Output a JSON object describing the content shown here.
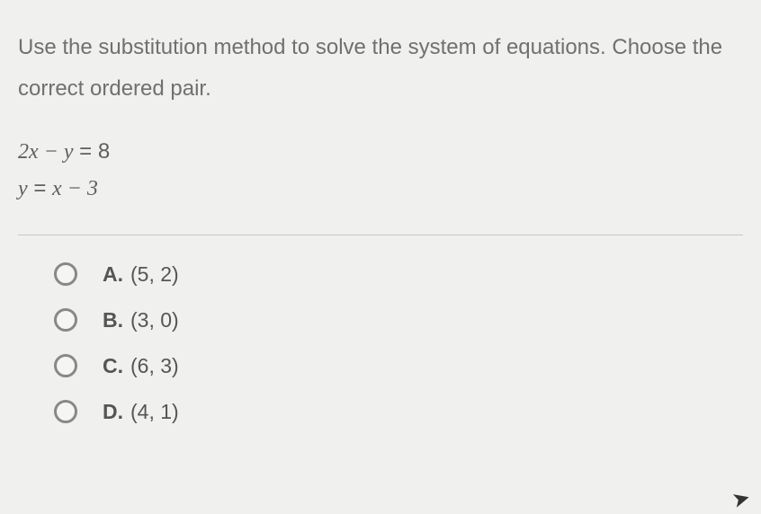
{
  "question": {
    "line1": "Use the substitution method to solve the system of equations. Choose the",
    "line2": "correct ordered pair."
  },
  "equations": {
    "eq1_lhs": "2x − y",
    "eq1_rhs": "8",
    "eq2_lhs": "y",
    "eq2_rhs": "x − 3"
  },
  "choices": [
    {
      "letter": "A.",
      "value": "(5, 2)"
    },
    {
      "letter": "B.",
      "value": "(3, 0)"
    },
    {
      "letter": "C.",
      "value": "(6, 3)"
    },
    {
      "letter": "D.",
      "value": "(4, 1)"
    }
  ],
  "styling": {
    "background_color": "#f0f0ee",
    "text_color": "#6a6a6a",
    "question_fontsize": 24,
    "equation_fontsize": 24,
    "choice_fontsize": 23,
    "radio_border_color": "#888",
    "divider_color": "#c8c8c6"
  }
}
